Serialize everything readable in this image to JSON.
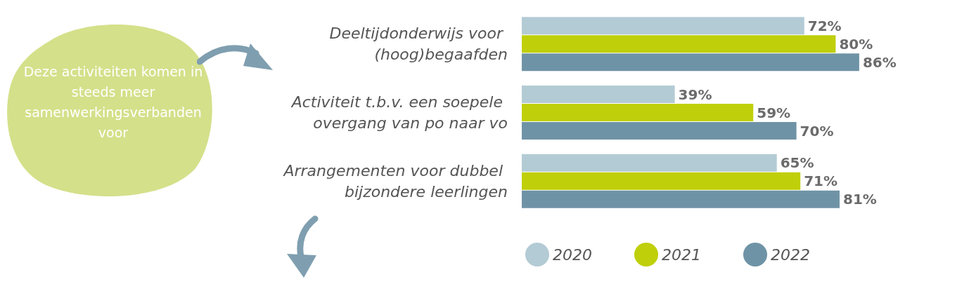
{
  "chart_data": {
    "type": "bar",
    "orientation": "horizontal",
    "categories": [
      "Deeltijdonderwijs voor (hoog)begaafden",
      "Activiteit t.b.v. een soepele overgang van po naar vo",
      "Arrangementen voor dubbel bijzondere leerlingen"
    ],
    "series": [
      {
        "name": "2020",
        "color": "#b3cbd4",
        "values": [
          72,
          39,
          65
        ],
        "value_labels": [
          "72%",
          "39%",
          "65%"
        ]
      },
      {
        "name": "2021",
        "color": "#bfcf0a",
        "values": [
          80,
          59,
          71
        ],
        "value_labels": [
          "80%",
          "59%",
          "71%"
        ]
      },
      {
        "name": "2022",
        "color": "#6f93a6",
        "values": [
          86,
          70,
          81
        ],
        "value_labels": [
          "86%",
          "70%",
          "81%"
        ]
      }
    ],
    "legend": "bottom",
    "annotations": [
      "Deze activiteiten komen in steeds meer samenwerkingsverbanden voor"
    ]
  }
}
